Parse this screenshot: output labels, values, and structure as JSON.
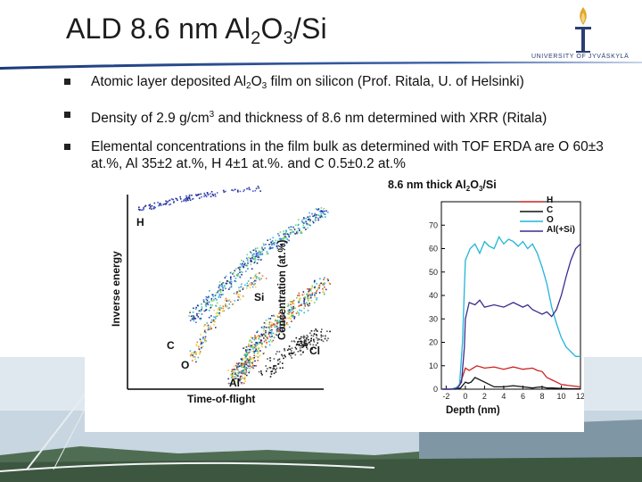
{
  "slide": {
    "title_main": "ALD 8.6 nm Al",
    "title_sub1": "2",
    "title_mid": "O",
    "title_sub2": "3",
    "title_end": "/Si"
  },
  "logo": {
    "text": "UNIVERSITY OF JYVÄSKYLÄ"
  },
  "bullets": [
    {
      "a": "Atomic layer deposited Al",
      "s1": "2",
      "b": "O",
      "s2": "3",
      "c": " film on silicon (Prof. Ritala, U. of Helsinki)"
    },
    {
      "a": "Density of 2.9 g/cm",
      "sup": "3",
      "b": " and thickness of 8.6 nm determined with XRR (Ritala)"
    },
    {
      "a": "Elemental concentrations in the film bulk as determined with TOF ERDA are O 60±3 at.%, Al 35±2 at.%, H 4±1 at.%. and C 0.5±0.2 at.%"
    }
  ],
  "erda_plot": {
    "xlabel": "Time-of-flight",
    "ylabel": "Inverse energy",
    "labels": {
      "H": "H",
      "C": "C",
      "O": "O",
      "Al": "Al",
      "Si": "Si",
      "Cl": "Cl",
      "Cl35": "35"
    }
  },
  "chart_data": {
    "type": "line",
    "title": "8.6 nm thick Al2O3/Si",
    "title_parts": {
      "a": "8.6 nm thick Al",
      "s1": "2",
      "b": "O",
      "s2": "3",
      "c": "/Si"
    },
    "xlabel": "Depth (nm)",
    "ylabel": "Concentration (at.%)",
    "xlim": [
      -2.5,
      12
    ],
    "ylim": [
      0,
      80
    ],
    "xticks": [
      -2,
      0,
      2,
      4,
      6,
      8,
      10,
      12
    ],
    "yticks": [
      0,
      10,
      20,
      30,
      40,
      50,
      60,
      70
    ],
    "legend_position": "top-right",
    "series": [
      {
        "name": "H",
        "color": "#cc2222",
        "x": [
          -2.4,
          -1.5,
          -0.8,
          -0.4,
          0,
          0.4,
          0.8,
          1.2,
          2,
          3,
          4,
          5,
          6,
          7,
          7.5,
          8,
          8.5,
          9,
          9.5,
          10,
          11,
          12
        ],
        "y": [
          0,
          0,
          0.5,
          4,
          9,
          8,
          9,
          10,
          9,
          9.5,
          8.5,
          9.5,
          8.5,
          9,
          8,
          7.5,
          5,
          4,
          3,
          2,
          1.5,
          1
        ]
      },
      {
        "name": "C",
        "color": "#111111",
        "x": [
          -2.4,
          -1,
          -0.5,
          0,
          0.3,
          0.6,
          1,
          2,
          3,
          4,
          5,
          6,
          7,
          7.5,
          8,
          8.5,
          9,
          10,
          11,
          12
        ],
        "y": [
          0,
          0,
          0.5,
          3,
          2.5,
          3,
          5,
          3,
          1,
          1,
          1.5,
          1,
          0.5,
          0.8,
          1,
          0.5,
          0.5,
          0.3,
          0.2,
          0.2
        ]
      },
      {
        "name": "O",
        "color": "#22b5d8",
        "x": [
          -2.4,
          -1.5,
          -1,
          -0.6,
          -0.3,
          0,
          0.5,
          1,
          1.5,
          2,
          2.5,
          3,
          3.5,
          4,
          4.5,
          5,
          5.5,
          6,
          6.5,
          7,
          7.5,
          8,
          8.5,
          9,
          9.5,
          10,
          10.5,
          11,
          11.5,
          12
        ],
        "y": [
          0,
          0,
          0.5,
          2,
          20,
          55,
          60,
          62,
          58,
          63,
          61,
          60,
          65,
          62,
          64,
          63,
          61,
          63,
          60,
          62,
          58,
          52,
          45,
          35,
          28,
          22,
          18,
          16,
          14,
          14
        ]
      },
      {
        "name": "Al(+Si)",
        "color": "#3b2b8f",
        "x": [
          -2.4,
          -1.5,
          -0.8,
          -0.4,
          -0.1,
          0,
          0.4,
          1,
          1.5,
          2,
          3,
          4,
          5,
          6,
          6.5,
          7,
          7.5,
          8,
          8.5,
          9,
          9.5,
          10,
          10.5,
          11,
          11.5,
          12
        ],
        "y": [
          0,
          0,
          0.5,
          3,
          18,
          30,
          37,
          36,
          38,
          35,
          36,
          35,
          37,
          35,
          36,
          34,
          33,
          32,
          33,
          31,
          34,
          40,
          48,
          55,
          60,
          62
        ]
      }
    ]
  }
}
